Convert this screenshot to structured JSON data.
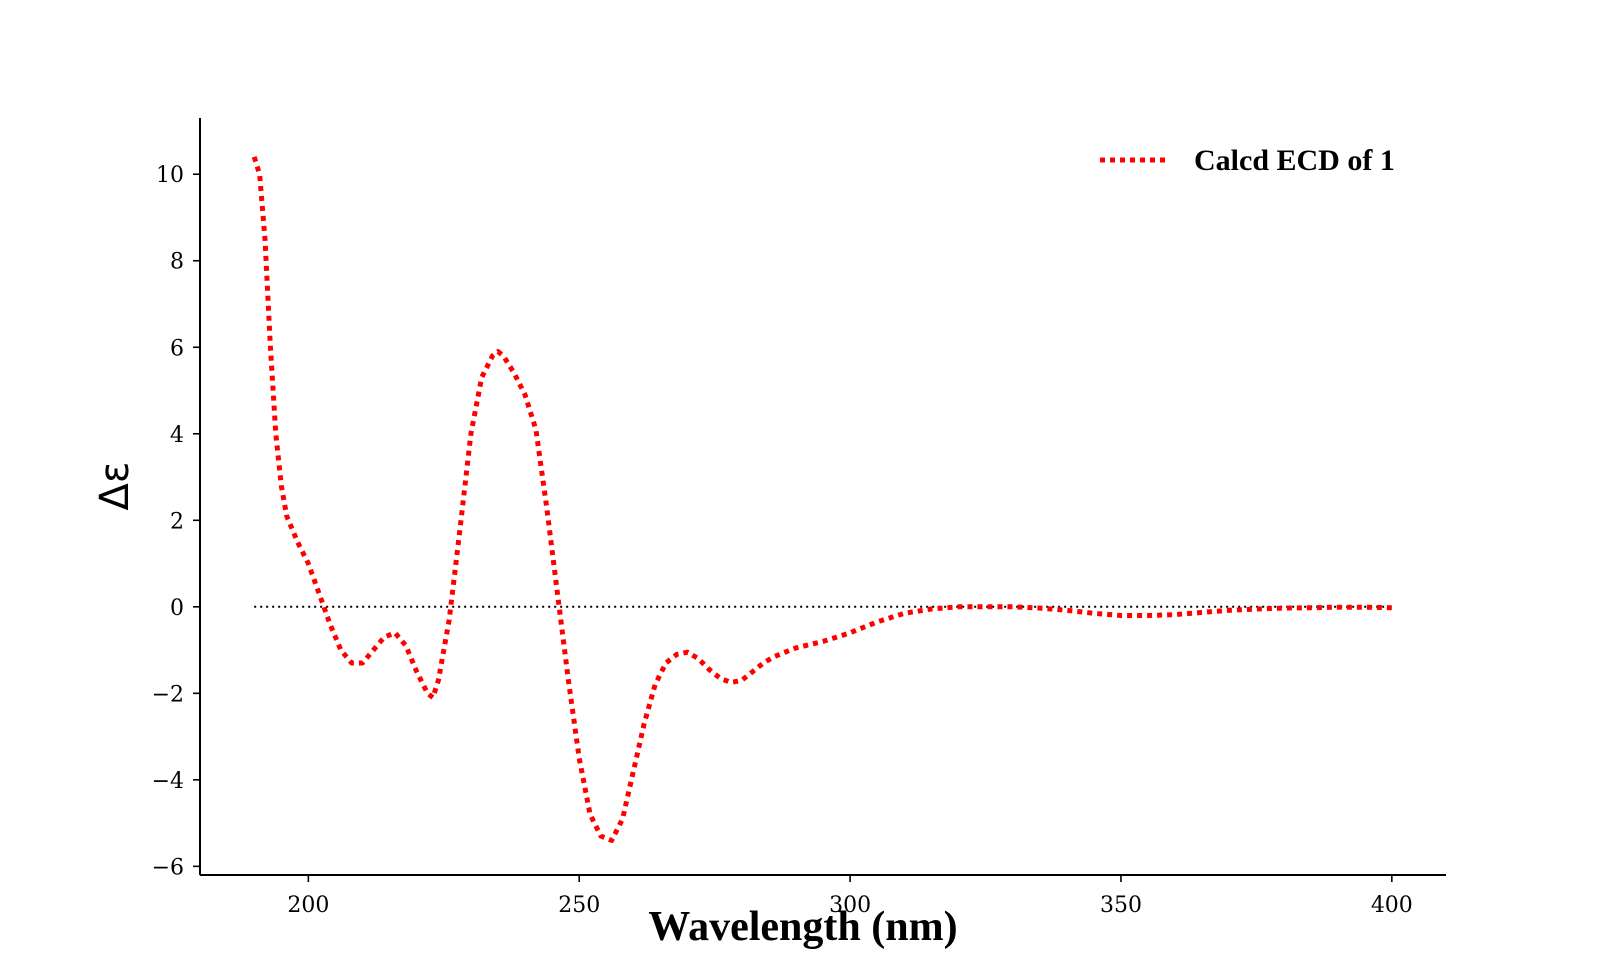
{
  "chart_data": {
    "type": "line",
    "title": "",
    "xlabel": "Wavelength (nm)",
    "ylabel": "Δε",
    "xlim": [
      180,
      410
    ],
    "ylim": [
      -6.2,
      11.3
    ],
    "xticks": [
      200,
      250,
      300,
      350,
      400
    ],
    "yticks": [
      -6,
      -4,
      -2,
      0,
      2,
      4,
      6,
      8,
      10
    ],
    "ytick_labels": [
      "−6",
      "−4",
      "−2",
      "0",
      "2",
      "4",
      "6",
      "8",
      "10"
    ],
    "grid": false,
    "legend_position": "top-right",
    "reference_line": {
      "y": 0,
      "x_range": [
        190,
        400
      ],
      "style": "dotted",
      "color": "#000000"
    },
    "series": [
      {
        "name": "Calcd ECD of 1",
        "color": "#ff0000",
        "style": "dotted",
        "x": [
          190,
          191,
          192,
          193,
          194,
          195,
          196,
          197,
          198,
          200,
          202,
          204,
          206,
          208,
          210,
          212,
          214,
          216,
          218,
          220,
          222,
          223,
          224,
          226,
          228,
          230,
          232,
          234,
          235,
          236,
          238,
          240,
          242,
          244,
          246,
          248,
          250,
          252,
          254,
          256,
          258,
          260,
          262,
          264,
          266,
          268,
          270,
          272,
          274,
          276,
          278,
          280,
          282,
          284,
          286,
          288,
          290,
          295,
          300,
          305,
          310,
          315,
          320,
          325,
          330,
          335,
          340,
          345,
          350,
          355,
          360,
          365,
          370,
          375,
          380,
          385,
          390,
          395,
          400
        ],
        "y": [
          10.4,
          10.0,
          8.5,
          6.0,
          4.0,
          2.8,
          2.1,
          1.8,
          1.5,
          1.0,
          0.3,
          -0.4,
          -1.0,
          -1.3,
          -1.3,
          -1.0,
          -0.7,
          -0.6,
          -0.9,
          -1.5,
          -2.0,
          -2.1,
          -1.7,
          -0.3,
          1.8,
          4.0,
          5.3,
          5.8,
          5.9,
          5.8,
          5.4,
          4.9,
          4.1,
          2.3,
          0.3,
          -1.7,
          -3.5,
          -4.8,
          -5.3,
          -5.4,
          -4.9,
          -3.8,
          -2.7,
          -1.8,
          -1.3,
          -1.1,
          -1.05,
          -1.2,
          -1.45,
          -1.65,
          -1.75,
          -1.7,
          -1.5,
          -1.3,
          -1.15,
          -1.05,
          -0.95,
          -0.8,
          -0.6,
          -0.35,
          -0.15,
          -0.05,
          0.0,
          0.0,
          0.0,
          -0.03,
          -0.08,
          -0.15,
          -0.2,
          -0.2,
          -0.18,
          -0.13,
          -0.08,
          -0.05,
          -0.03,
          -0.02,
          -0.01,
          -0.01,
          -0.02
        ]
      }
    ]
  }
}
